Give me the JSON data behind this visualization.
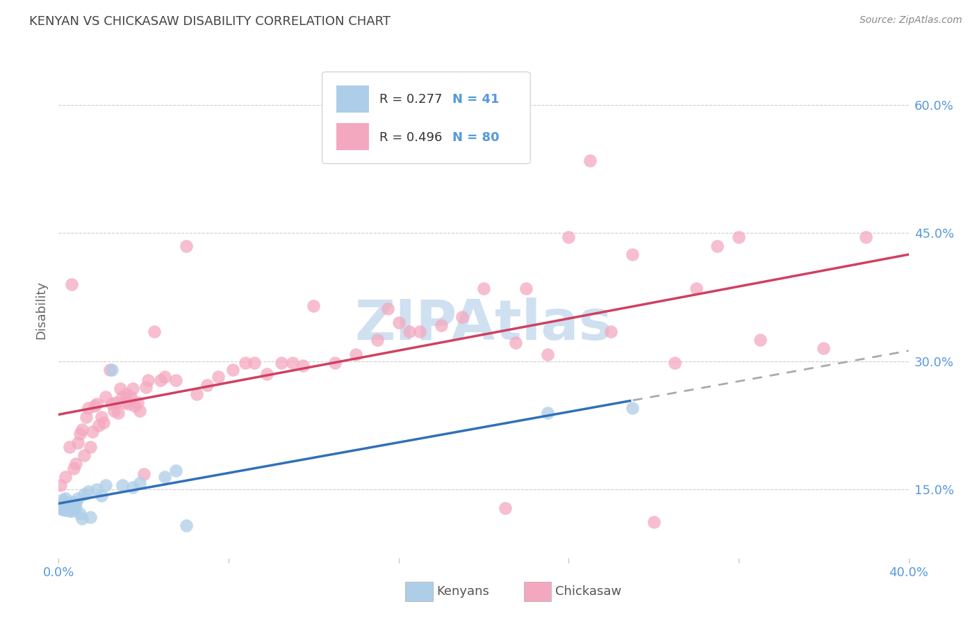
{
  "title": "KENYAN VS CHICKASAW DISABILITY CORRELATION CHART",
  "source": "Source: ZipAtlas.com",
  "ylabel": "Disability",
  "xlim": [
    0.0,
    0.4
  ],
  "ylim": [
    0.07,
    0.65
  ],
  "yticks": [
    0.15,
    0.3,
    0.45,
    0.6
  ],
  "ytick_labels": [
    "15.0%",
    "30.0%",
    "45.0%",
    "60.0%"
  ],
  "xticks": [
    0.0,
    0.08,
    0.16,
    0.24,
    0.32,
    0.4
  ],
  "xtick_labels": [
    "0.0%",
    "",
    "",
    "",
    "",
    "40.0%"
  ],
  "kenyan_R": 0.277,
  "kenyan_N": 41,
  "chickasaw_R": 0.496,
  "chickasaw_N": 80,
  "kenyan_color": "#aecde8",
  "chickasaw_color": "#f4a8c0",
  "kenyan_line_color": "#3070b8",
  "chickasaw_line_color": "#d04060",
  "title_color": "#444444",
  "source_color": "#888888",
  "axis_label_color": "#666666",
  "tick_label_color": "#5599dd",
  "watermark_text": "ZIPAtlas",
  "watermark_color": "#cfe0f0",
  "kenyan_x": [
    0.001,
    0.001,
    0.001,
    0.002,
    0.002,
    0.002,
    0.003,
    0.003,
    0.003,
    0.003,
    0.004,
    0.004,
    0.004,
    0.005,
    0.005,
    0.005,
    0.006,
    0.006,
    0.006,
    0.007,
    0.007,
    0.008,
    0.008,
    0.009,
    0.01,
    0.011,
    0.012,
    0.014,
    0.015,
    0.018,
    0.02,
    0.022,
    0.025,
    0.03,
    0.035,
    0.038,
    0.05,
    0.055,
    0.06,
    0.23,
    0.27
  ],
  "kenyan_y": [
    0.132,
    0.128,
    0.13,
    0.138,
    0.133,
    0.127,
    0.14,
    0.135,
    0.126,
    0.13,
    0.133,
    0.128,
    0.131,
    0.134,
    0.13,
    0.125,
    0.136,
    0.131,
    0.125,
    0.133,
    0.127,
    0.135,
    0.128,
    0.14,
    0.122,
    0.116,
    0.145,
    0.148,
    0.118,
    0.15,
    0.143,
    0.155,
    0.29,
    0.155,
    0.153,
    0.158,
    0.165,
    0.172,
    0.108,
    0.24,
    0.245
  ],
  "chickasaw_x": [
    0.001,
    0.003,
    0.005,
    0.006,
    0.007,
    0.008,
    0.009,
    0.01,
    0.011,
    0.012,
    0.013,
    0.014,
    0.015,
    0.016,
    0.017,
    0.018,
    0.019,
    0.02,
    0.021,
    0.022,
    0.024,
    0.025,
    0.026,
    0.027,
    0.028,
    0.029,
    0.03,
    0.031,
    0.032,
    0.033,
    0.034,
    0.035,
    0.036,
    0.037,
    0.038,
    0.04,
    0.041,
    0.042,
    0.045,
    0.048,
    0.05,
    0.055,
    0.06,
    0.065,
    0.07,
    0.075,
    0.082,
    0.088,
    0.092,
    0.098,
    0.105,
    0.11,
    0.115,
    0.12,
    0.13,
    0.14,
    0.15,
    0.155,
    0.16,
    0.165,
    0.17,
    0.18,
    0.19,
    0.2,
    0.21,
    0.215,
    0.22,
    0.23,
    0.24,
    0.25,
    0.26,
    0.27,
    0.28,
    0.29,
    0.3,
    0.31,
    0.32,
    0.33,
    0.36,
    0.38
  ],
  "chickasaw_y": [
    0.155,
    0.165,
    0.2,
    0.39,
    0.175,
    0.18,
    0.205,
    0.215,
    0.22,
    0.19,
    0.235,
    0.245,
    0.2,
    0.218,
    0.248,
    0.25,
    0.225,
    0.235,
    0.228,
    0.258,
    0.29,
    0.25,
    0.242,
    0.252,
    0.24,
    0.268,
    0.258,
    0.252,
    0.262,
    0.25,
    0.258,
    0.268,
    0.248,
    0.252,
    0.242,
    0.168,
    0.27,
    0.278,
    0.335,
    0.278,
    0.282,
    0.278,
    0.435,
    0.262,
    0.272,
    0.282,
    0.29,
    0.298,
    0.298,
    0.285,
    0.298,
    0.298,
    0.295,
    0.365,
    0.298,
    0.308,
    0.325,
    0.362,
    0.345,
    0.335,
    0.335,
    0.342,
    0.352,
    0.385,
    0.128,
    0.322,
    0.385,
    0.308,
    0.445,
    0.535,
    0.335,
    0.425,
    0.112,
    0.298,
    0.385,
    0.435,
    0.445,
    0.325,
    0.315,
    0.445
  ]
}
